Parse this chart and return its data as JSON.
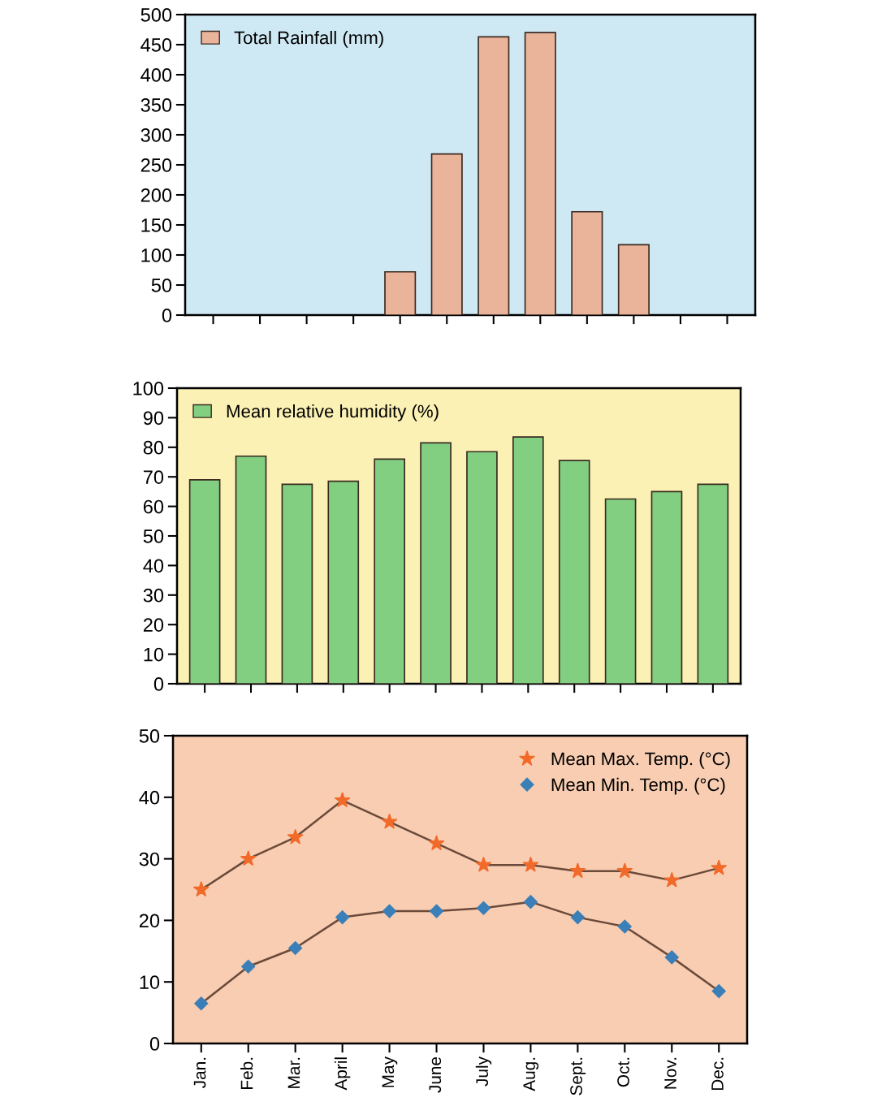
{
  "chart_data": [
    {
      "type": "bar",
      "categories": [
        null,
        null,
        null,
        null,
        null,
        null,
        null,
        null,
        null,
        null,
        null,
        null
      ],
      "series": [
        {
          "name": "Total Rainfall (mm)",
          "color": "#eab49b",
          "values": [
            null,
            null,
            null,
            null,
            72,
            268,
            463,
            470,
            172,
            117,
            null,
            null
          ]
        }
      ],
      "ylim": [
        0,
        500
      ],
      "yticks": [
        0,
        50,
        100,
        150,
        200,
        250,
        300,
        350,
        400,
        450,
        500
      ],
      "legend": "top left",
      "tick_labels": "y"
    },
    {
      "type": "bar",
      "categories": [
        null,
        null,
        null,
        null,
        null,
        null,
        null,
        null,
        null,
        null,
        null,
        null
      ],
      "series": [
        {
          "name": "Mean relative humidity (%)",
          "color": "#82cf82",
          "values": [
            69,
            77,
            67.5,
            68.5,
            76,
            81.5,
            78.5,
            83.5,
            75.5,
            62.5,
            65,
            67.5
          ]
        }
      ],
      "ylim": [
        0,
        100
      ],
      "yticks": [
        0,
        10,
        20,
        30,
        40,
        50,
        60,
        70,
        80,
        90,
        100
      ],
      "legend": "top left",
      "tick_labels": "y"
    },
    {
      "type": "line",
      "categories": [
        "Jan.",
        "Feb.",
        "Mar.",
        "April",
        "May",
        "June",
        "July",
        "Aug.",
        "Sept.",
        "Oct.",
        "Nov.",
        "Dec."
      ],
      "series": [
        {
          "name": "Mean Max. Temp. (°C)",
          "color": "#f26a2a",
          "marker": "star",
          "values": [
            25,
            30,
            33.5,
            39.5,
            36,
            32.5,
            29,
            29,
            28,
            28,
            26.5,
            28.5
          ]
        },
        {
          "name": "Mean Min. Temp. (°C)",
          "color": "#3a7fb8",
          "marker": "diamond",
          "values": [
            6.5,
            12.5,
            15.5,
            20.5,
            21.5,
            21.5,
            22,
            23,
            20.5,
            19,
            14,
            8.5
          ]
        }
      ],
      "ylim": [
        0,
        50
      ],
      "yticks": [
        0,
        10,
        20,
        30,
        40,
        50
      ],
      "legend": "top right"
    }
  ]
}
